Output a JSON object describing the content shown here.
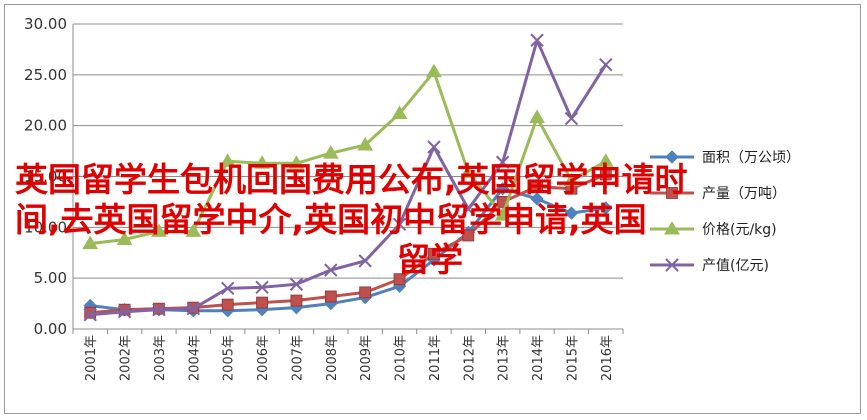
{
  "chart_data": {
    "type": "line",
    "categories": [
      "2001年",
      "2002年",
      "2003年",
      "2004年",
      "2005年",
      "2006年",
      "2007年",
      "2008年",
      "2009年",
      "2010年",
      "2011年",
      "2012年",
      "2013年",
      "2014年",
      "2015年",
      "2016年"
    ],
    "ylim": [
      0,
      30
    ],
    "yticks": [
      "0.00",
      "5.00",
      "10.00",
      "15.00",
      "20.00",
      "25.00",
      "30.00"
    ],
    "grid": true,
    "legend_position": "right",
    "series": [
      {
        "name": "面积（万公顷）",
        "color": "#4f81bd",
        "marker": "diamond",
        "values": [
          2.3,
          1.9,
          1.9,
          1.8,
          1.8,
          1.9,
          2.1,
          2.5,
          3.1,
          4.2,
          6.8,
          9.5,
          13.8,
          12.8,
          11.4,
          11.9
        ]
      },
      {
        "name": "产量（万吨）",
        "color": "#c0504d",
        "marker": "square",
        "values": [
          1.6,
          1.9,
          2.0,
          2.1,
          2.4,
          2.6,
          2.8,
          3.2,
          3.6,
          4.9,
          7.4,
          9.2,
          12.5,
          14.0,
          13.8,
          15.2
        ]
      },
      {
        "name": "价格(元/kg)",
        "color": "#9bbb59",
        "marker": "triangle",
        "values": [
          8.4,
          8.8,
          9.6,
          9.6,
          16.5,
          16.3,
          16.3,
          17.3,
          18.1,
          21.2,
          25.3,
          15.4,
          11.2,
          20.8,
          14.6,
          16.5
        ]
      },
      {
        "name": "产值(亿元)",
        "color": "#8064a2",
        "marker": "x",
        "values": [
          1.4,
          1.7,
          1.9,
          2.0,
          4.0,
          4.1,
          4.4,
          5.8,
          6.7,
          10.3,
          17.9,
          11.8,
          16.4,
          28.4,
          20.7,
          26.0
        ]
      }
    ]
  },
  "overlay": {
    "line1": "英国留学生包机回国费用公布,英国留学申请时",
    "line2": "间,去英国留学中介,英国初中留学申请,英国",
    "line3": "留学"
  }
}
